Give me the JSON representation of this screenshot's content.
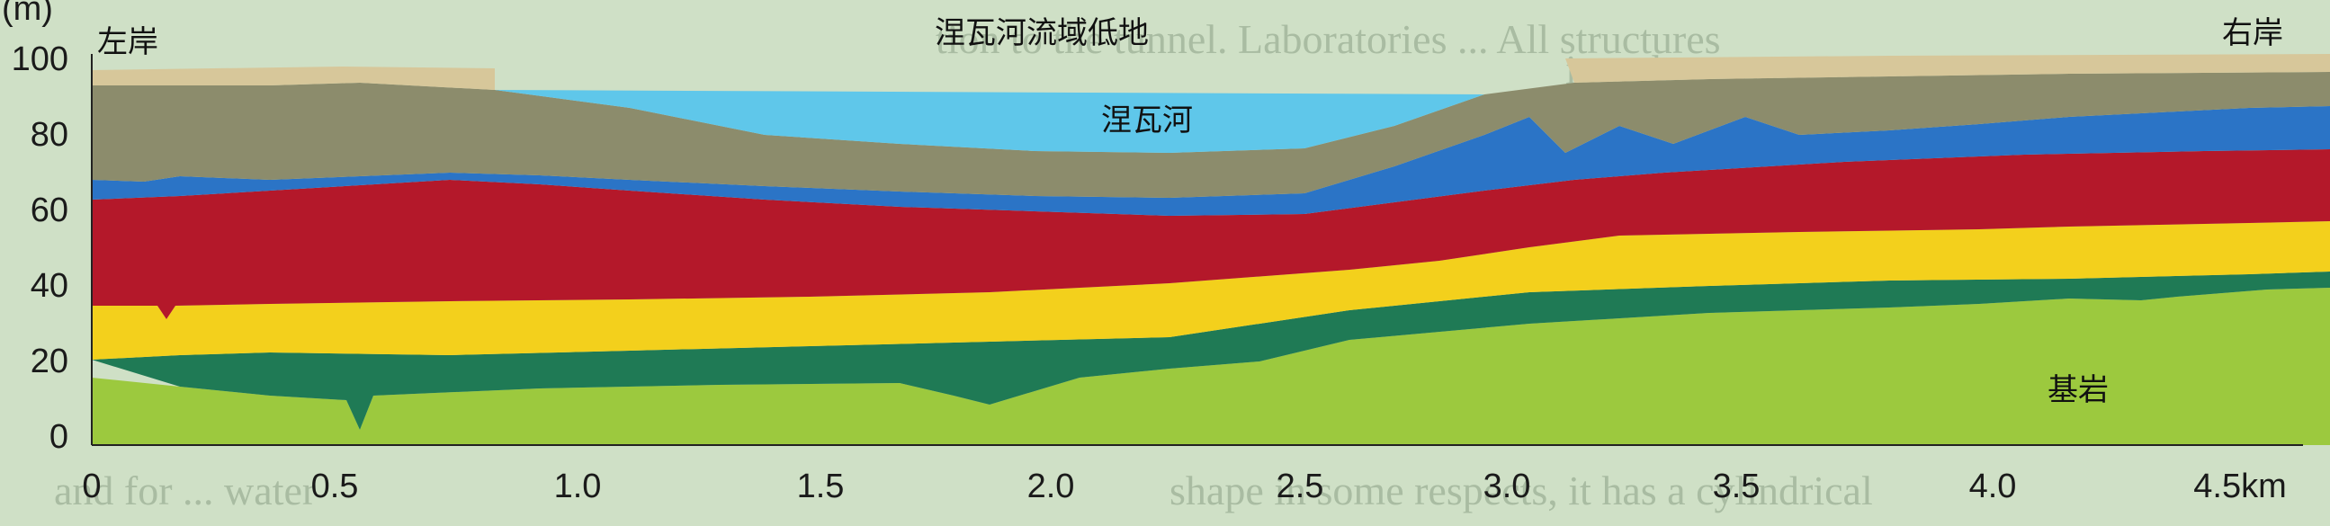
{
  "title": "涅瓦河流域低地",
  "labels": {
    "left_bank": "左岸",
    "right_bank": "右岸",
    "river": "涅瓦河",
    "bedrock": "基岩"
  },
  "y_axis": {
    "unit": "(m)",
    "ticks": [
      "100",
      "80",
      "60",
      "40",
      "20",
      "0"
    ]
  },
  "x_axis": {
    "ticks": [
      "0",
      "0.5",
      "1.0",
      "1.5",
      "2.0",
      "2.5",
      "3.0",
      "3.5",
      "4.0",
      "4.5km"
    ]
  },
  "colors": {
    "background": "#cfe0c6",
    "surface": "#d7c79a",
    "upper_layer": "#8c8c6c",
    "water": "#5fc7ea",
    "blue_layer": "#2b74c6",
    "red_layer": "#b4182a",
    "yellow_layer": "#f3d01c",
    "teal_layer": "#1f7a55",
    "bedrock": "#9cc93e"
  }
}
